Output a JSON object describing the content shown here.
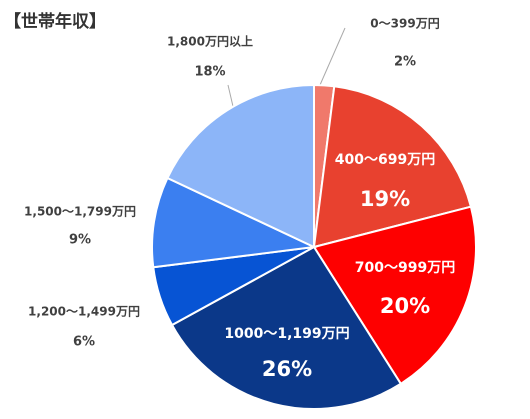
{
  "chart_data": {
    "type": "pie",
    "title": "【世帯年収】",
    "categories": [
      "0～399万円",
      "400～699万円",
      "700～999万円",
      "1000～1,199万円",
      "1,200～1,499万円",
      "1,500～1,799万円",
      "1,800万円以上"
    ],
    "values": [
      2,
      19,
      20,
      26,
      6,
      9,
      18
    ],
    "value_labels": [
      "2%",
      "19%",
      "20%",
      "26%",
      "6%",
      "9%",
      "18%"
    ],
    "colors": [
      "#f0796b",
      "#e8412f",
      "#fe0000",
      "#0b3889",
      "#0754d4",
      "#3b7ff0",
      "#8cb5f8"
    ]
  }
}
